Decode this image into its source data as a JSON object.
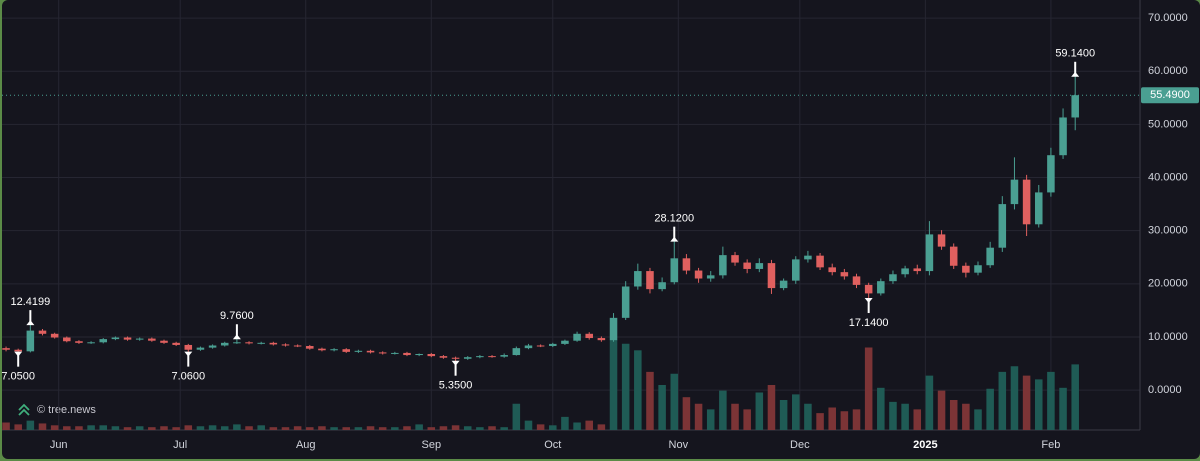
{
  "chart_data": {
    "type": "candlestick",
    "grid": true,
    "up_color": "#4a9f92",
    "down_color": "#e0605f",
    "volume_up_color": "#1f5b55",
    "volume_down_color": "#7c3436",
    "xlim": [
      0,
      281
    ],
    "ylim": [
      -7.5,
      73.4
    ],
    "xticks": [
      {
        "value": 14,
        "label": "Jun"
      },
      {
        "value": 44,
        "label": "Jul"
      },
      {
        "value": 75,
        "label": "Aug"
      },
      {
        "value": 106,
        "label": "Sep"
      },
      {
        "value": 136,
        "label": "Oct"
      },
      {
        "value": 167,
        "label": "Nov"
      },
      {
        "value": 197,
        "label": "Dec"
      },
      {
        "value": 228,
        "label": "2025"
      },
      {
        "value": 259,
        "label": "Feb"
      }
    ],
    "yticks": [
      {
        "value": 0,
        "label": "0.0000"
      },
      {
        "value": 10,
        "label": "10.0000"
      },
      {
        "value": 20,
        "label": "20.0000"
      },
      {
        "value": 30,
        "label": "30.0000"
      },
      {
        "value": 40,
        "label": "40.0000"
      },
      {
        "value": 50,
        "label": "50.0000"
      },
      {
        "value": 60,
        "label": "60.0000"
      },
      {
        "value": 70,
        "label": "70.0000"
      }
    ],
    "x": [
      1,
      4,
      7,
      10,
      13,
      16,
      19,
      22,
      25,
      28,
      31,
      34,
      37,
      40,
      43,
      46,
      49,
      52,
      55,
      58,
      61,
      64,
      67,
      70,
      73,
      76,
      79,
      82,
      85,
      88,
      91,
      94,
      97,
      100,
      103,
      106,
      109,
      112,
      115,
      118,
      121,
      124,
      127,
      130,
      133,
      136,
      139,
      142,
      145,
      148,
      151,
      154,
      157,
      160,
      163,
      166,
      169,
      172,
      175,
      178,
      181,
      184,
      187,
      190,
      193,
      196,
      199,
      202,
      205,
      208,
      211,
      214,
      217,
      220,
      223,
      226,
      229,
      232,
      235,
      238,
      241,
      244,
      247,
      250,
      253,
      256,
      259,
      262,
      265
    ],
    "open": [
      7.9,
      7.6,
      7.3,
      11.2,
      10.6,
      9.9,
      9.2,
      8.9,
      9.0,
      9.6,
      9.9,
      9.5,
      9.7,
      9.3,
      8.9,
      8.5,
      7.6,
      8.0,
      8.4,
      8.9,
      9.0,
      8.8,
      8.9,
      8.6,
      8.4,
      8.3,
      7.8,
      7.5,
      7.7,
      7.2,
      7.4,
      7.1,
      6.9,
      7.0,
      6.6,
      6.8,
      6.4,
      6.1,
      5.9,
      6.2,
      6.4,
      6.3,
      6.6,
      7.9,
      8.4,
      8.3,
      8.7,
      9.3,
      10.6,
      9.8,
      9.4,
      13.6,
      19.5,
      22.4,
      19.0,
      20.3,
      24.8,
      22.5,
      21.0,
      21.6,
      25.4,
      24.0,
      22.8,
      23.9,
      19.2,
      20.6,
      24.6,
      25.3,
      23.1,
      22.2,
      21.4,
      19.8,
      18.2,
      20.5,
      21.8,
      22.9,
      22.4,
      29.3,
      27.0,
      23.4,
      22.1,
      23.5,
      26.8,
      35.0,
      39.6,
      31.2,
      37.2,
      44.2,
      51.3
    ],
    "high": [
      8.2,
      7.8,
      12.4199,
      11.5,
      10.8,
      10.1,
      9.4,
      9.2,
      9.8,
      10.1,
      10.1,
      9.9,
      9.9,
      9.5,
      9.1,
      8.7,
      8.2,
      8.6,
      9.1,
      9.76,
      9.2,
      9.1,
      9.1,
      8.8,
      8.6,
      8.5,
      8.0,
      7.9,
      7.9,
      7.6,
      7.6,
      7.3,
      7.2,
      7.2,
      6.9,
      7.0,
      6.6,
      6.3,
      6.4,
      6.6,
      6.6,
      6.9,
      8.2,
      8.7,
      8.6,
      8.9,
      9.5,
      11.0,
      10.9,
      10.1,
      14.5,
      20.5,
      23.8,
      23.0,
      21.2,
      28.12,
      25.6,
      23.0,
      22.4,
      27.0,
      26.0,
      24.6,
      24.8,
      24.5,
      21.0,
      25.2,
      26.2,
      25.8,
      23.8,
      22.8,
      21.9,
      20.2,
      21.0,
      22.5,
      23.4,
      23.6,
      31.8,
      30.1,
      27.6,
      24.0,
      24.2,
      27.9,
      36.5,
      43.8,
      40.5,
      38.6,
      45.6,
      53.0,
      59.14
    ],
    "low": [
      7.3,
      7.05,
      7.1,
      10.3,
      9.7,
      9.0,
      8.7,
      8.7,
      8.8,
      9.4,
      9.3,
      9.3,
      9.1,
      8.7,
      8.3,
      7.06,
      7.4,
      7.8,
      8.2,
      8.7,
      8.6,
      8.6,
      8.4,
      8.2,
      8.1,
      7.6,
      7.3,
      7.3,
      7.0,
      7.0,
      6.9,
      6.7,
      6.7,
      6.4,
      6.4,
      6.2,
      5.9,
      5.35,
      5.7,
      6.0,
      6.1,
      6.1,
      6.5,
      7.7,
      8.1,
      8.1,
      8.5,
      9.1,
      9.5,
      9.1,
      9.1,
      13.2,
      18.9,
      18.2,
      18.6,
      19.9,
      21.8,
      20.2,
      20.4,
      21.0,
      23.4,
      22.0,
      22.2,
      18.1,
      18.8,
      20.0,
      24.0,
      22.6,
      21.6,
      20.8,
      19.2,
      17.14,
      17.8,
      20.0,
      21.2,
      21.8,
      21.6,
      26.4,
      22.8,
      21.2,
      21.6,
      23.0,
      26.0,
      34.0,
      29.0,
      30.6,
      36.4,
      43.5,
      48.9
    ],
    "close": [
      7.6,
      7.3,
      11.2,
      10.6,
      9.9,
      9.2,
      8.9,
      9.0,
      9.6,
      9.9,
      9.5,
      9.7,
      9.3,
      8.9,
      8.5,
      7.6,
      8.0,
      8.4,
      8.9,
      9.0,
      8.8,
      8.9,
      8.6,
      8.4,
      8.3,
      7.8,
      7.5,
      7.7,
      7.2,
      7.4,
      7.1,
      6.9,
      7.0,
      6.6,
      6.8,
      6.4,
      6.1,
      5.9,
      6.2,
      6.4,
      6.3,
      6.6,
      7.9,
      8.4,
      8.3,
      8.7,
      9.3,
      10.6,
      9.8,
      9.4,
      13.6,
      19.5,
      22.4,
      19.0,
      20.3,
      24.8,
      22.5,
      21.0,
      21.6,
      25.4,
      24.0,
      22.8,
      23.9,
      19.2,
      20.6,
      24.6,
      25.3,
      23.1,
      22.2,
      21.4,
      19.8,
      18.2,
      20.5,
      21.8,
      22.9,
      22.4,
      29.3,
      27.0,
      23.4,
      22.1,
      23.5,
      26.8,
      35.0,
      39.6,
      31.2,
      37.2,
      44.2,
      51.3,
      55.49
    ],
    "volume": [
      8,
      6,
      10,
      7,
      5,
      4,
      4,
      5,
      5,
      4,
      3,
      4,
      3,
      4,
      3,
      5,
      4,
      5,
      4,
      6,
      4,
      5,
      3,
      3,
      4,
      3,
      4,
      3,
      3,
      3,
      4,
      3,
      3,
      4,
      6,
      3,
      4,
      5,
      4,
      3,
      4,
      3,
      28,
      10,
      6,
      5,
      14,
      8,
      10,
      6,
      96,
      92,
      85,
      62,
      48,
      60,
      35,
      28,
      22,
      42,
      28,
      22,
      40,
      48,
      32,
      38,
      28,
      18,
      24,
      20,
      22,
      88,
      45,
      30,
      28,
      22,
      58,
      42,
      32,
      28,
      22,
      44,
      62,
      68,
      58,
      54,
      62,
      45,
      70
    ],
    "annotations": [
      {
        "x": 4,
        "value": 7.05,
        "label": "7.0500",
        "position": "below"
      },
      {
        "x": 7,
        "value": 12.4199,
        "label": "12.4199",
        "position": "above"
      },
      {
        "x": 46,
        "value": 7.06,
        "label": "7.0600",
        "position": "below"
      },
      {
        "x": 58,
        "value": 9.76,
        "label": "9.7600",
        "position": "above"
      },
      {
        "x": 112,
        "value": 5.35,
        "label": "5.3500",
        "position": "below"
      },
      {
        "x": 166,
        "value": 28.12,
        "label": "28.1200",
        "position": "above"
      },
      {
        "x": 214,
        "value": 17.14,
        "label": "17.1400",
        "position": "below"
      },
      {
        "x": 265,
        "value": 59.14,
        "label": "59.1400",
        "position": "above"
      }
    ],
    "last_price": {
      "value": 55.49,
      "label": "55.4900"
    },
    "watermark": "© tree.news"
  }
}
